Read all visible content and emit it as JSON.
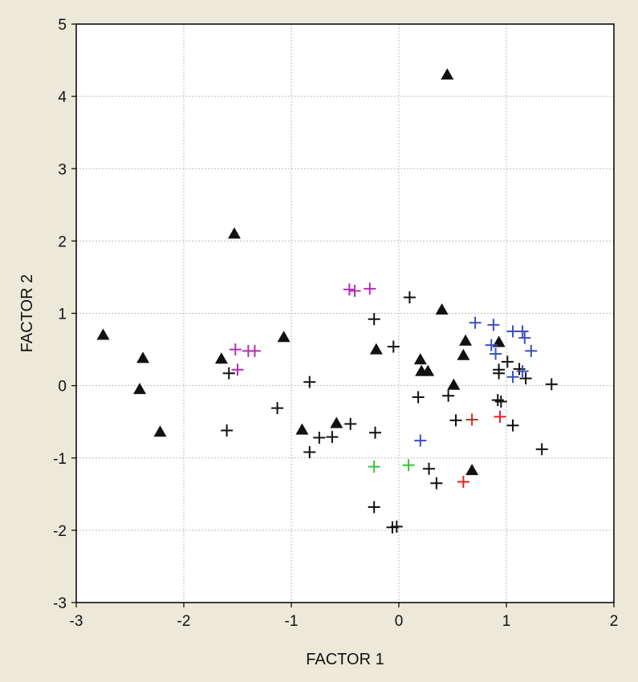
{
  "chart_data": {
    "type": "scatter",
    "title": "",
    "xlabel": "FACTOR 1",
    "ylabel": "FACTOR 2",
    "xlim": [
      -3,
      2
    ],
    "ylim": [
      -3,
      5
    ],
    "xticks": [
      -3,
      -2,
      -1,
      0,
      1,
      2
    ],
    "yticks": [
      -3,
      -2,
      -1,
      0,
      1,
      2,
      3,
      4,
      5
    ],
    "grid": true,
    "colors": {
      "background": "#ece9d8",
      "plot_area": "#ffffff",
      "grid": "#bdbdbd",
      "black": "#111111",
      "magenta": "#b030b0",
      "blue": "#3a4fc0",
      "green": "#3cc03c",
      "red": "#e02020"
    },
    "series": [
      {
        "marker": "triangle",
        "color": "black",
        "points": [
          [
            0.45,
            4.3
          ],
          [
            -1.53,
            2.1
          ],
          [
            -2.75,
            0.7
          ],
          [
            -2.38,
            0.38
          ],
          [
            -2.41,
            -0.05
          ],
          [
            -2.22,
            -0.64
          ],
          [
            -1.65,
            0.37
          ],
          [
            -1.07,
            0.67
          ],
          [
            -0.9,
            -0.61
          ],
          [
            -0.58,
            -0.52
          ],
          [
            -0.21,
            0.5
          ],
          [
            0.4,
            1.05
          ],
          [
            0.2,
            0.36
          ],
          [
            0.21,
            0.2
          ],
          [
            0.27,
            0.2
          ],
          [
            0.51,
            0.01
          ],
          [
            0.6,
            0.42
          ],
          [
            0.62,
            0.62
          ],
          [
            0.93,
            0.6
          ],
          [
            0.68,
            -1.17
          ]
        ]
      },
      {
        "marker": "plus",
        "color": "black",
        "points": [
          [
            0.1,
            1.22
          ],
          [
            -0.23,
            0.92
          ],
          [
            -0.05,
            0.54
          ],
          [
            -1.58,
            0.17
          ],
          [
            -0.83,
            0.05
          ],
          [
            -1.13,
            -0.31
          ],
          [
            -1.6,
            -0.62
          ],
          [
            -0.45,
            -0.53
          ],
          [
            -0.62,
            -0.71
          ],
          [
            -0.74,
            -0.72
          ],
          [
            -0.83,
            -0.92
          ],
          [
            -0.22,
            -0.65
          ],
          [
            0.18,
            -0.16
          ],
          [
            0.46,
            -0.14
          ],
          [
            0.53,
            -0.48
          ],
          [
            0.28,
            -1.15
          ],
          [
            0.35,
            -1.35
          ],
          [
            -0.23,
            -1.68
          ],
          [
            -0.06,
            -1.96
          ],
          [
            -0.02,
            -1.95
          ],
          [
            0.93,
            0.17
          ],
          [
            0.93,
            0.22
          ],
          [
            1.01,
            0.33
          ],
          [
            1.12,
            0.23
          ],
          [
            1.18,
            0.1
          ],
          [
            0.95,
            -0.22
          ],
          [
            0.92,
            -0.2
          ],
          [
            1.06,
            -0.55
          ],
          [
            1.33,
            -0.88
          ],
          [
            1.42,
            0.02
          ]
        ]
      },
      {
        "marker": "plus",
        "color": "magenta",
        "points": [
          [
            -0.46,
            1.33
          ],
          [
            -0.41,
            1.31
          ],
          [
            -0.27,
            1.34
          ],
          [
            -1.52,
            0.5
          ],
          [
            -1.4,
            0.48
          ],
          [
            -1.34,
            0.48
          ],
          [
            -1.5,
            0.22
          ]
        ]
      },
      {
        "marker": "plus",
        "color": "blue",
        "points": [
          [
            0.71,
            0.87
          ],
          [
            0.88,
            0.84
          ],
          [
            0.86,
            0.56
          ],
          [
            0.9,
            0.44
          ],
          [
            1.06,
            0.75
          ],
          [
            1.15,
            0.75
          ],
          [
            1.17,
            0.66
          ],
          [
            1.23,
            0.48
          ],
          [
            1.06,
            0.12
          ],
          [
            1.15,
            0.2
          ],
          [
            0.2,
            -0.76
          ]
        ]
      },
      {
        "marker": "plus",
        "color": "green",
        "points": [
          [
            -0.23,
            -1.12
          ],
          [
            0.09,
            -1.1
          ]
        ]
      },
      {
        "marker": "plus",
        "color": "red",
        "points": [
          [
            0.68,
            -0.47
          ],
          [
            0.94,
            -0.43
          ],
          [
            0.6,
            -1.33
          ]
        ]
      }
    ]
  }
}
